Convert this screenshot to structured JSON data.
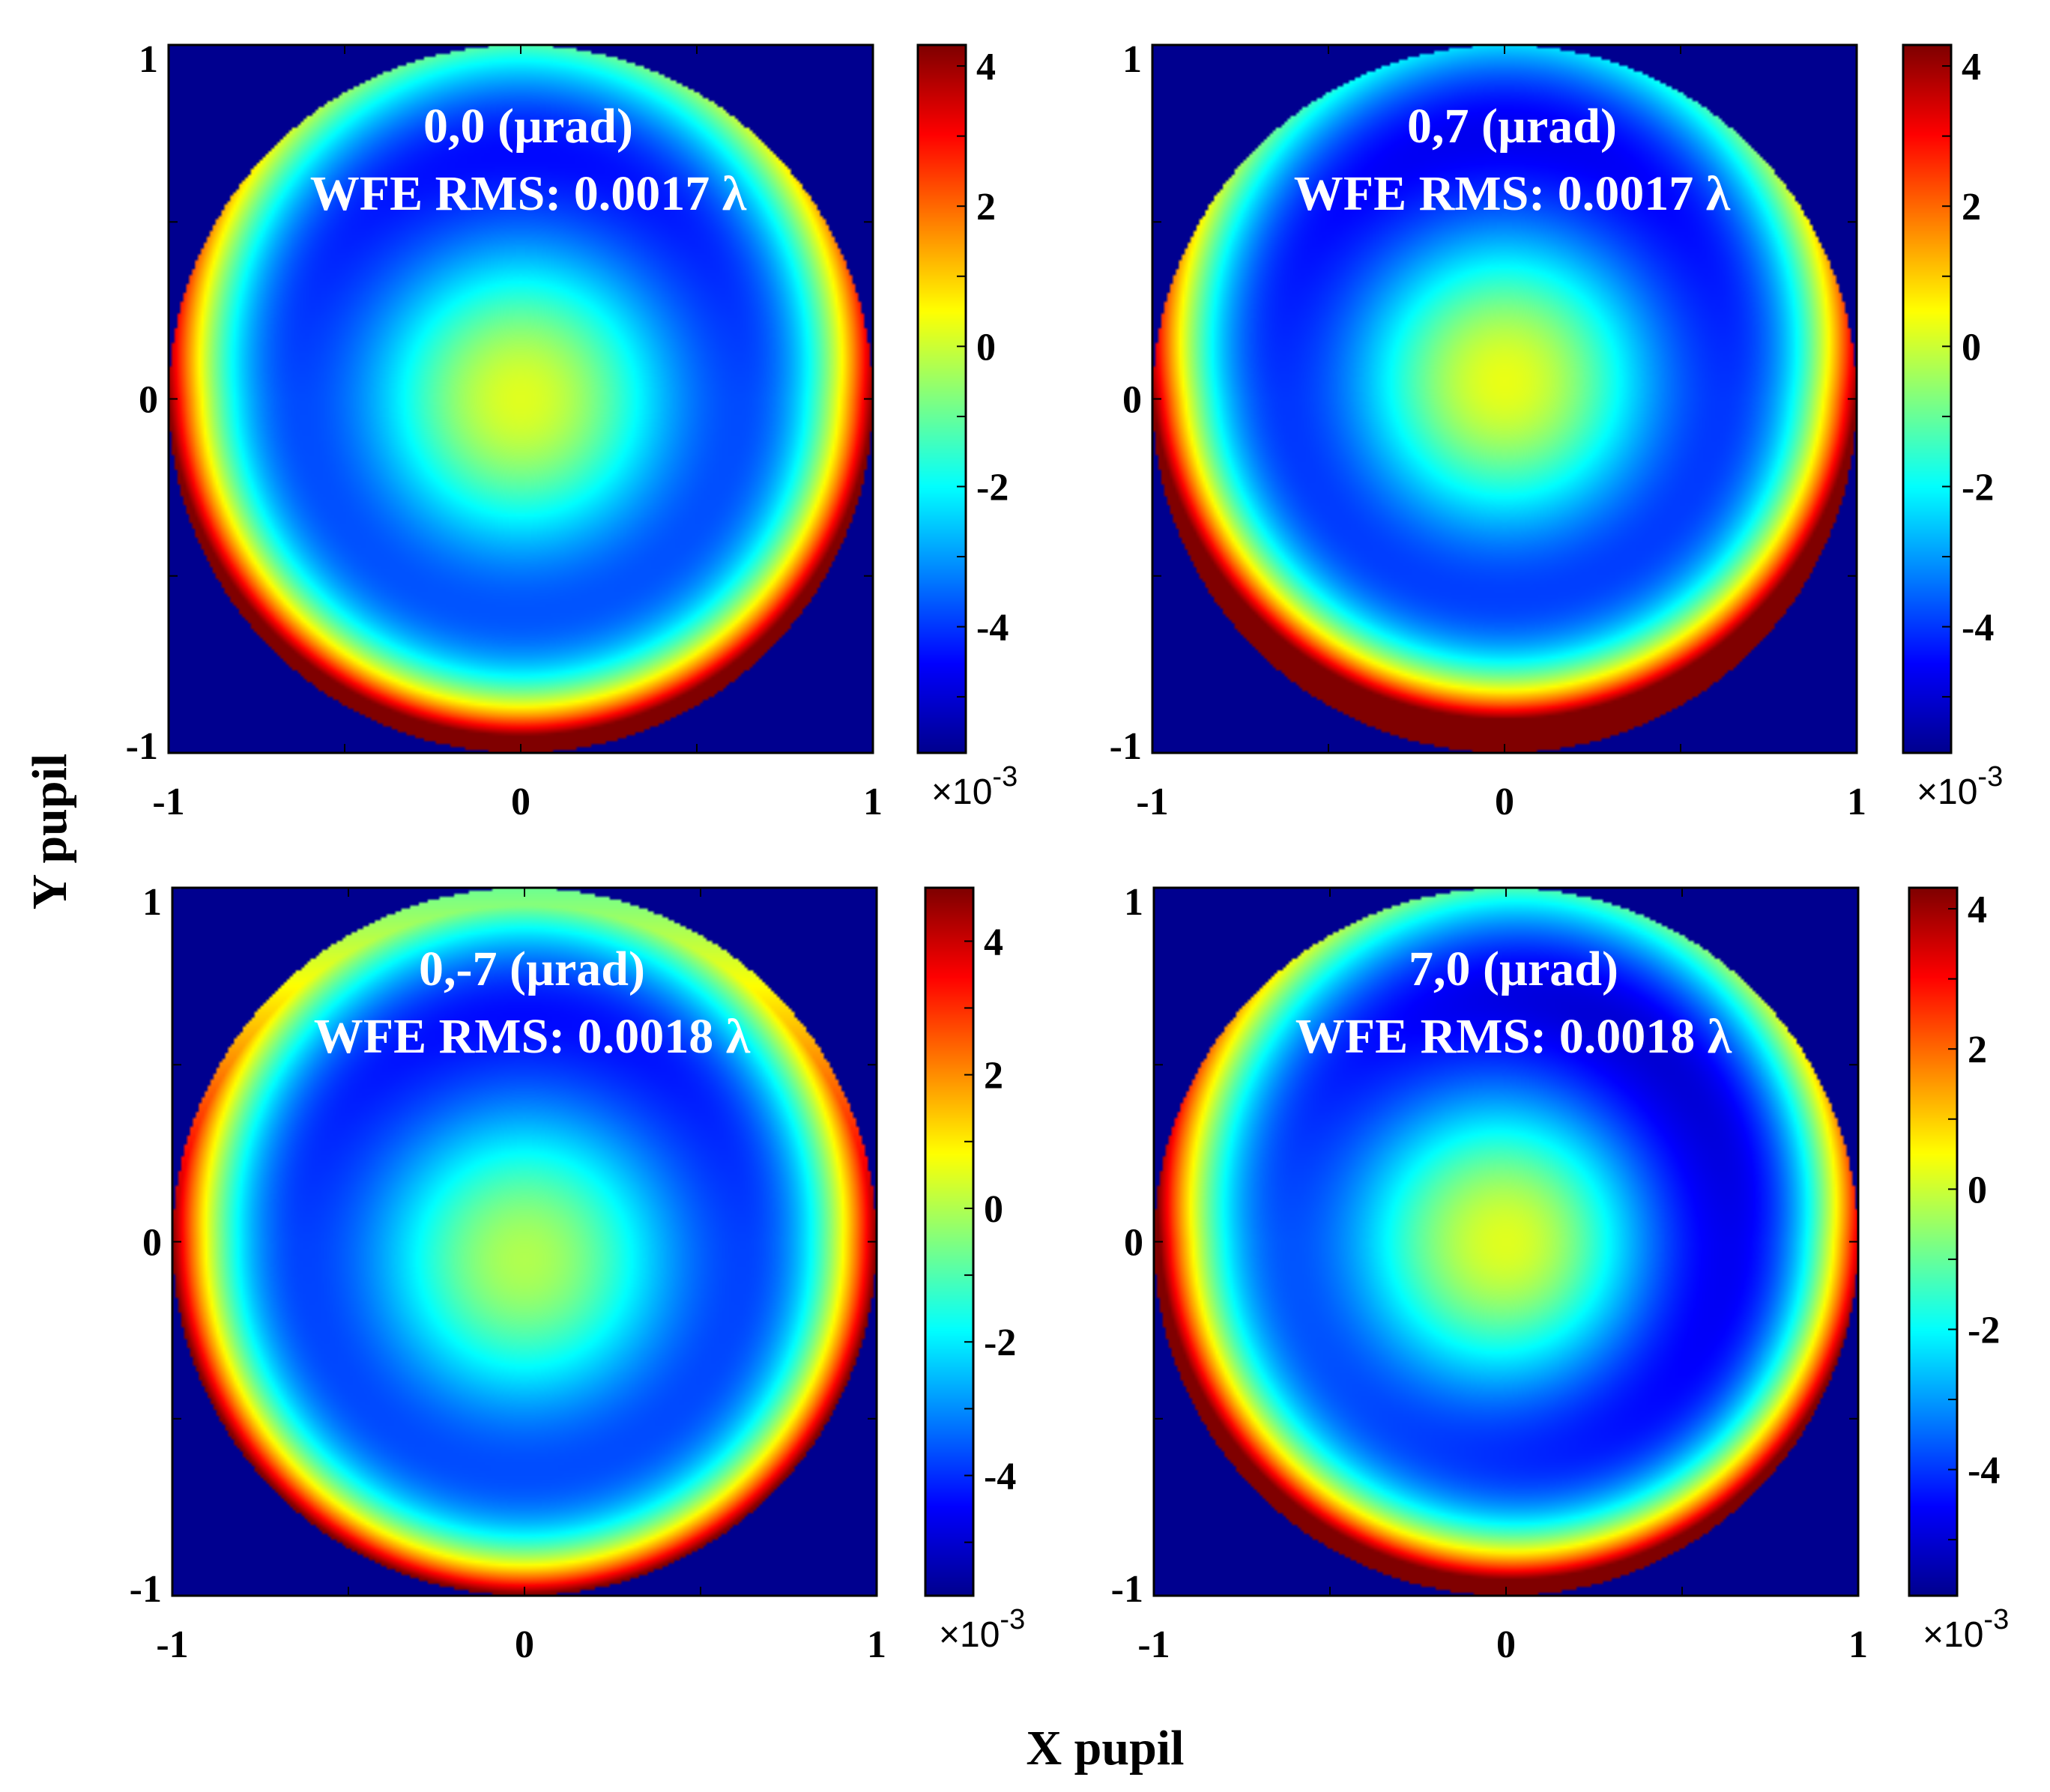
{
  "figure": {
    "xlabel": "X pupil",
    "ylabel": "Y pupil"
  },
  "colormap": [
    "#00008f",
    "#0000ff",
    "#0080ff",
    "#00ffff",
    "#80ff80",
    "#ffff00",
    "#ff8000",
    "#ff0000",
    "#800000"
  ],
  "chart_data": [
    {
      "type": "heatmap",
      "title": "0,0 (µrad)",
      "subtitle": "WFE RMS: 0.0017 λ",
      "field_angle_urad": [
        0,
        0
      ],
      "wfe_rms_waves": 0.0017,
      "xlim": [
        -1,
        1
      ],
      "ylim": [
        -1,
        1
      ],
      "xticks": [
        -1,
        0,
        1
      ],
      "xtick_labels": [
        "-1",
        "0",
        "1"
      ],
      "yticks": [
        -1,
        0,
        1
      ],
      "ytick_labels": [
        "-1",
        "0",
        "1"
      ],
      "colorbar": {
        "min": -5.8,
        "max": 4.3,
        "ticks": [
          4,
          2,
          0,
          -2,
          -4
        ],
        "tick_labels": [
          "4",
          "2",
          "0",
          "-2",
          "-4"
        ],
        "exponent_label": "×10",
        "exponent": "-3"
      },
      "surface": {
        "center_x": 0.0,
        "center_y": 0.0,
        "center_value": 0.2,
        "ring_value": -3.8,
        "edge_value": 4.3,
        "tilt_x": 0.0,
        "bottom_edge_boost": 0.5
      }
    },
    {
      "type": "heatmap",
      "title": "0,7 (µrad)",
      "subtitle": "WFE RMS: 0.0017 λ",
      "field_angle_urad": [
        0,
        7
      ],
      "wfe_rms_waves": 0.0017,
      "xlim": [
        -1,
        1
      ],
      "ylim": [
        -1,
        1
      ],
      "xticks": [
        -1,
        0,
        1
      ],
      "xtick_labels": [
        "-1",
        "0",
        "1"
      ],
      "yticks": [
        -1,
        0,
        1
      ],
      "ytick_labels": [
        "-1",
        "0",
        "1"
      ],
      "colorbar": {
        "min": -5.8,
        "max": 4.3,
        "ticks": [
          4,
          2,
          0,
          -2,
          -4
        ],
        "tick_labels": [
          "4",
          "2",
          "0",
          "-2",
          "-4"
        ],
        "exponent_label": "×10",
        "exponent": "-3"
      },
      "surface": {
        "center_x": 0.0,
        "center_y": 0.05,
        "center_value": 0.3,
        "ring_value": -4.0,
        "edge_value": 4.3,
        "tilt_x": 0.0,
        "bottom_edge_boost": 0.5
      }
    },
    {
      "type": "heatmap",
      "title": "0,-7 (µrad)",
      "subtitle": "WFE RMS: 0.0018 λ",
      "field_angle_urad": [
        0,
        -7
      ],
      "wfe_rms_waves": 0.0018,
      "xlim": [
        -1,
        1
      ],
      "ylim": [
        -1,
        1
      ],
      "xticks": [
        -1,
        0,
        1
      ],
      "xtick_labels": [
        "-1",
        "0",
        "1"
      ],
      "yticks": [
        -1,
        0,
        1
      ],
      "ytick_labels": [
        "-1",
        "0",
        "1"
      ],
      "colorbar": {
        "min": -5.8,
        "max": 4.8,
        "ticks": [
          4,
          2,
          0,
          -2,
          -4
        ],
        "tick_labels": [
          "4",
          "2",
          "0",
          "-2",
          "-4"
        ],
        "exponent_label": "×10",
        "exponent": "-3"
      },
      "surface": {
        "center_x": 0.0,
        "center_y": -0.05,
        "center_value": 0.0,
        "ring_value": -3.8,
        "edge_value": 4.8,
        "tilt_x": 0.0,
        "bottom_edge_boost": 0.6
      }
    },
    {
      "type": "heatmap",
      "title": "7,0 (µrad)",
      "subtitle": "WFE RMS: 0.0018 λ",
      "field_angle_urad": [
        7,
        0
      ],
      "wfe_rms_waves": 0.0018,
      "xlim": [
        -1,
        1
      ],
      "ylim": [
        -1,
        1
      ],
      "xticks": [
        -1,
        0,
        1
      ],
      "xtick_labels": [
        "-1",
        "0",
        "1"
      ],
      "yticks": [
        -1,
        0,
        1
      ],
      "ytick_labels": [
        "-1",
        "0",
        "1"
      ],
      "colorbar": {
        "min": -5.8,
        "max": 4.3,
        "ticks": [
          4,
          2,
          0,
          -2,
          -4
        ],
        "tick_labels": [
          "4",
          "2",
          "0",
          "-2",
          "-4"
        ],
        "exponent_label": "×10",
        "exponent": "-3"
      },
      "surface": {
        "center_x": 0.0,
        "center_y": 0.0,
        "center_value": 0.2,
        "ring_value": -4.2,
        "edge_value": 4.3,
        "tilt_x": -0.8,
        "bottom_edge_boost": 0.5
      }
    }
  ]
}
